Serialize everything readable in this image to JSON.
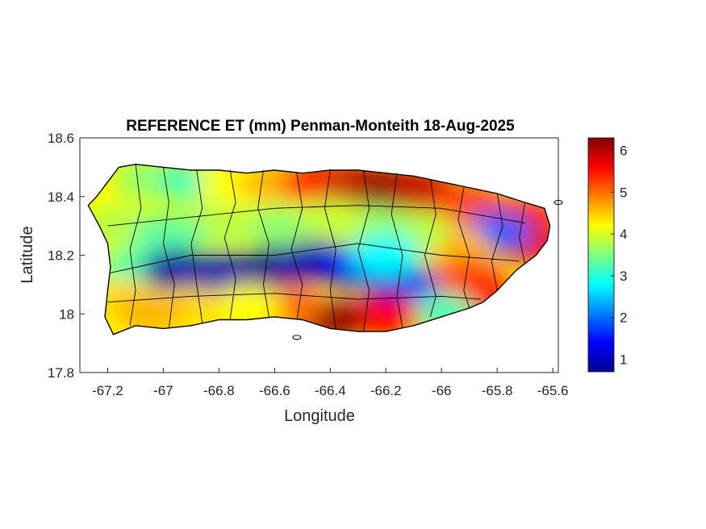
{
  "chart_data": {
    "type": "heatmap",
    "title": "REFERENCE ET (mm) Penman-Monteith 18-Aug-2025",
    "xlabel": "Longitude",
    "ylabel": "Latitude",
    "xlim": [
      -67.3,
      -65.58
    ],
    "ylim": [
      17.8,
      18.6
    ],
    "xticks": [
      -67.2,
      -67,
      -66.8,
      -66.6,
      -66.4,
      -66.2,
      -66,
      -65.8,
      -65.6
    ],
    "xtick_labels": [
      "-67.2",
      "-67",
      "-66.8",
      "-66.6",
      "-66.4",
      "-66.2",
      "-66",
      "-65.8",
      "-65.6"
    ],
    "yticks": [
      17.8,
      18,
      18.2,
      18.4,
      18.6
    ],
    "ytick_labels": [
      "17.8",
      "18",
      "18.2",
      "18.4",
      "18.6"
    ],
    "colorbar": {
      "colormap": "jet",
      "clim": [
        0.7,
        6.3
      ],
      "ticks": [
        1,
        2,
        3,
        4,
        5,
        6
      ],
      "tick_labels": [
        "1",
        "2",
        "3",
        "4",
        "5",
        "6"
      ]
    },
    "outline": [
      [
        -67.27,
        18.37
      ],
      [
        -67.24,
        18.4
      ],
      [
        -67.2,
        18.45
      ],
      [
        -67.16,
        18.5
      ],
      [
        -67.1,
        18.51
      ],
      [
        -67.0,
        18.5
      ],
      [
        -66.9,
        18.49
      ],
      [
        -66.8,
        18.49
      ],
      [
        -66.7,
        18.48
      ],
      [
        -66.6,
        18.49
      ],
      [
        -66.5,
        18.48
      ],
      [
        -66.4,
        18.49
      ],
      [
        -66.3,
        18.49
      ],
      [
        -66.2,
        18.48
      ],
      [
        -66.1,
        18.47
      ],
      [
        -66.0,
        18.45
      ],
      [
        -65.9,
        18.43
      ],
      [
        -65.8,
        18.41
      ],
      [
        -65.7,
        18.38
      ],
      [
        -65.63,
        18.36
      ],
      [
        -65.61,
        18.3
      ],
      [
        -65.62,
        18.25
      ],
      [
        -65.66,
        18.2
      ],
      [
        -65.73,
        18.15
      ],
      [
        -65.8,
        18.08
      ],
      [
        -65.85,
        18.04
      ],
      [
        -65.9,
        18.02
      ],
      [
        -66.0,
        17.99
      ],
      [
        -66.1,
        17.96
      ],
      [
        -66.2,
        17.94
      ],
      [
        -66.3,
        17.94
      ],
      [
        -66.4,
        17.95
      ],
      [
        -66.5,
        17.98
      ],
      [
        -66.6,
        17.99
      ],
      [
        -66.7,
        17.98
      ],
      [
        -66.8,
        17.98
      ],
      [
        -66.9,
        17.96
      ],
      [
        -67.0,
        17.95
      ],
      [
        -67.1,
        17.96
      ],
      [
        -67.18,
        17.93
      ],
      [
        -67.21,
        17.99
      ],
      [
        -67.2,
        18.08
      ],
      [
        -67.19,
        18.16
      ],
      [
        -67.2,
        18.24
      ],
      [
        -67.23,
        18.3
      ],
      [
        -67.27,
        18.37
      ]
    ],
    "field": [
      {
        "lon": -67.16,
        "lat": 18.3,
        "value": 3.8
      },
      {
        "lon": -67.05,
        "lat": 18.46,
        "value": 3.6
      },
      {
        "lon": -66.9,
        "lat": 18.45,
        "value": 3.2
      },
      {
        "lon": -66.75,
        "lat": 18.45,
        "value": 4.2
      },
      {
        "lon": -66.6,
        "lat": 18.45,
        "value": 4.6
      },
      {
        "lon": -66.45,
        "lat": 18.45,
        "value": 5.4
      },
      {
        "lon": -66.3,
        "lat": 18.44,
        "value": 5.9
      },
      {
        "lon": -66.18,
        "lat": 18.43,
        "value": 6.2
      },
      {
        "lon": -66.05,
        "lat": 18.42,
        "value": 5.9
      },
      {
        "lon": -65.9,
        "lat": 18.38,
        "value": 5.2
      },
      {
        "lon": -65.7,
        "lat": 18.33,
        "value": 5.4
      },
      {
        "lon": -65.68,
        "lat": 18.24,
        "value": 5.7
      },
      {
        "lon": -65.8,
        "lat": 18.28,
        "value": 1.9
      },
      {
        "lon": -65.95,
        "lat": 18.23,
        "value": 4.6
      },
      {
        "lon": -66.1,
        "lat": 18.28,
        "value": 3.8
      },
      {
        "lon": -66.25,
        "lat": 18.3,
        "value": 3.6
      },
      {
        "lon": -66.4,
        "lat": 18.32,
        "value": 3.9
      },
      {
        "lon": -66.6,
        "lat": 18.3,
        "value": 3.6
      },
      {
        "lon": -66.8,
        "lat": 18.3,
        "value": 3.8
      },
      {
        "lon": -66.98,
        "lat": 18.27,
        "value": 3.3
      },
      {
        "lon": -67.1,
        "lat": 18.15,
        "value": 3.2
      },
      {
        "lon": -67.15,
        "lat": 18.05,
        "value": 4.4
      },
      {
        "lon": -66.95,
        "lat": 18.15,
        "value": 0.9
      },
      {
        "lon": -66.78,
        "lat": 18.14,
        "value": 1.0
      },
      {
        "lon": -66.6,
        "lat": 18.16,
        "value": 0.8
      },
      {
        "lon": -66.45,
        "lat": 18.18,
        "value": 1.0
      },
      {
        "lon": -66.3,
        "lat": 18.16,
        "value": 1.4
      },
      {
        "lon": -66.15,
        "lat": 18.1,
        "value": 1.2
      },
      {
        "lon": -66.0,
        "lat": 18.08,
        "value": 1.6
      },
      {
        "lon": -66.2,
        "lat": 18.2,
        "value": 2.8
      },
      {
        "lon": -65.9,
        "lat": 18.12,
        "value": 5.2
      },
      {
        "lon": -65.85,
        "lat": 18.05,
        "value": 5.4
      },
      {
        "lon": -66.0,
        "lat": 18.0,
        "value": 3.2
      },
      {
        "lon": -66.2,
        "lat": 17.99,
        "value": 5.6
      },
      {
        "lon": -66.4,
        "lat": 17.98,
        "value": 6.2
      },
      {
        "lon": -66.55,
        "lat": 18.03,
        "value": 5.0
      },
      {
        "lon": -66.7,
        "lat": 18.03,
        "value": 4.2
      },
      {
        "lon": -66.9,
        "lat": 18.02,
        "value": 4.4
      },
      {
        "lon": -67.05,
        "lat": 18.0,
        "value": 4.6
      }
    ]
  }
}
